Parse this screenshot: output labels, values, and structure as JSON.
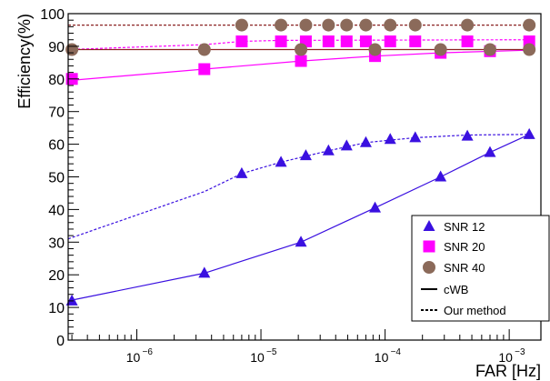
{
  "chart_data": {
    "type": "scatter",
    "xlabel": "FAR [Hz]",
    "ylabel": "Efficiency(%)",
    "x_scale": "log",
    "xlim": [
      2.8e-07,
      0.0018
    ],
    "ylim": [
      0,
      100
    ],
    "y_ticks": [
      0,
      10,
      20,
      30,
      40,
      50,
      60,
      70,
      80,
      90,
      100
    ],
    "x_ticks": [
      {
        "value": 1e-06,
        "label": "10",
        "exp": "−6"
      },
      {
        "value": 1e-05,
        "label": "10",
        "exp": "−5"
      },
      {
        "value": 0.0001,
        "label": "10",
        "exp": "−4"
      },
      {
        "value": 0.001,
        "label": "10",
        "exp": "−3"
      }
    ],
    "grid": false,
    "legend_position": "bottom-right",
    "series": [
      {
        "name": "SNR 12",
        "marker": "triangle",
        "color": "#3a10e0",
        "x": [
          3e-07,
          3.5e-06,
          7e-06,
          1.45e-05,
          2.3e-05,
          3.5e-05,
          4.9e-05,
          7e-05,
          0.00011,
          0.000175,
          0.00046,
          0.00145
        ],
        "y": [
          12,
          20.5,
          51,
          54.5,
          56.5,
          58,
          59.5,
          60.5,
          61.5,
          62,
          62.5,
          63
        ]
      },
      {
        "name": "SNR 20",
        "marker": "square",
        "color": "#ff00ff",
        "x": [
          3e-07,
          3.5e-06,
          7e-06,
          1.45e-05,
          2.3e-05,
          3.5e-05,
          4.9e-05,
          7e-05,
          0.00011,
          0.000175,
          0.00046,
          0.00145
        ],
        "y": [
          80,
          83,
          91.5,
          91.5,
          91.5,
          91.5,
          91.5,
          91.5,
          91.5,
          91.5,
          91.5,
          91.5
        ]
      },
      {
        "name": "SNR 40",
        "marker": "circle",
        "color": "#8b6a5a",
        "x": [
          3e-07,
          3.5e-06,
          7e-06,
          1.45e-05,
          2.3e-05,
          3.5e-05,
          4.9e-05,
          7e-05,
          0.00011,
          0.000175,
          0.00046,
          0.00145
        ],
        "y": [
          89,
          89,
          96.5,
          96.5,
          96.5,
          96.5,
          96.5,
          96.5,
          96.5,
          96.5,
          96.5,
          96.5
        ]
      },
      {
        "name": "SNR 12",
        "marker": "triangle",
        "color": "#3a10e0",
        "x": [
          2.1e-05,
          8.3e-05,
          0.00028,
          0.0007
        ],
        "y": [
          30,
          40.5,
          50,
          57.5
        ]
      },
      {
        "name": "SNR 20",
        "marker": "square",
        "color": "#ff00ff",
        "x": [
          2.1e-05,
          8.3e-05,
          0.00028,
          0.0007
        ],
        "y": [
          85.5,
          87,
          88,
          88.5
        ]
      },
      {
        "name": "SNR 40",
        "marker": "circle",
        "color": "#8b6a5a",
        "x": [
          2.1e-05,
          8.3e-05,
          0.00028,
          0.0007,
          0.00145
        ],
        "y": [
          89,
          89,
          89,
          89,
          89
        ]
      }
    ],
    "fit_lines": [
      {
        "legend": "cWB",
        "style": "solid",
        "color": "#3a10e0",
        "x": [
          2.8e-07,
          3.5e-06,
          2.1e-05,
          8.3e-05,
          0.00028,
          0.0007,
          0.00145
        ],
        "y": [
          12,
          20.5,
          30,
          40.5,
          50,
          57.5,
          63
        ]
      },
      {
        "legend": "Our method",
        "style": "dashed",
        "color": "#3a10e0",
        "x": [
          2.8e-07,
          3.5e-06,
          7e-06,
          1.45e-05,
          3.5e-05,
          7e-05,
          0.000175,
          0.00046,
          0.00145
        ],
        "y": [
          31,
          45.5,
          51,
          54.5,
          58,
          60.5,
          62,
          62.8,
          63
        ]
      },
      {
        "legend": "cWB",
        "style": "solid",
        "color": "#ff00ff",
        "x": [
          2.8e-07,
          3.5e-06,
          2.1e-05,
          8.3e-05,
          0.00028,
          0.00145
        ],
        "y": [
          79.5,
          83,
          85.5,
          87,
          88,
          88.8
        ]
      },
      {
        "legend": "Our method",
        "style": "dashed",
        "color": "#ff00ff",
        "x": [
          2.8e-07,
          3.5e-06,
          7e-06,
          1.45e-05,
          0.00145
        ],
        "y": [
          89,
          90.5,
          91.5,
          91.8,
          92
        ]
      },
      {
        "legend": "cWB",
        "style": "solid",
        "color": "#8b2222",
        "x": [
          2.8e-07,
          0.00145
        ],
        "y": [
          89,
          89
        ]
      },
      {
        "legend": "Our method",
        "style": "dashed",
        "color": "#8b2222",
        "x": [
          2.8e-07,
          0.00145
        ],
        "y": [
          96.5,
          96.5
        ]
      }
    ],
    "legend": [
      {
        "label": "SNR 12",
        "kind": "triangle",
        "color": "#3a10e0"
      },
      {
        "label": "SNR 20",
        "kind": "square",
        "color": "#ff00ff"
      },
      {
        "label": "SNR 40",
        "kind": "circle",
        "color": "#8b6a5a"
      },
      {
        "label": "cWB",
        "kind": "solid",
        "color": "#000000"
      },
      {
        "label": "Our method",
        "kind": "dashed",
        "color": "#000000"
      }
    ]
  }
}
